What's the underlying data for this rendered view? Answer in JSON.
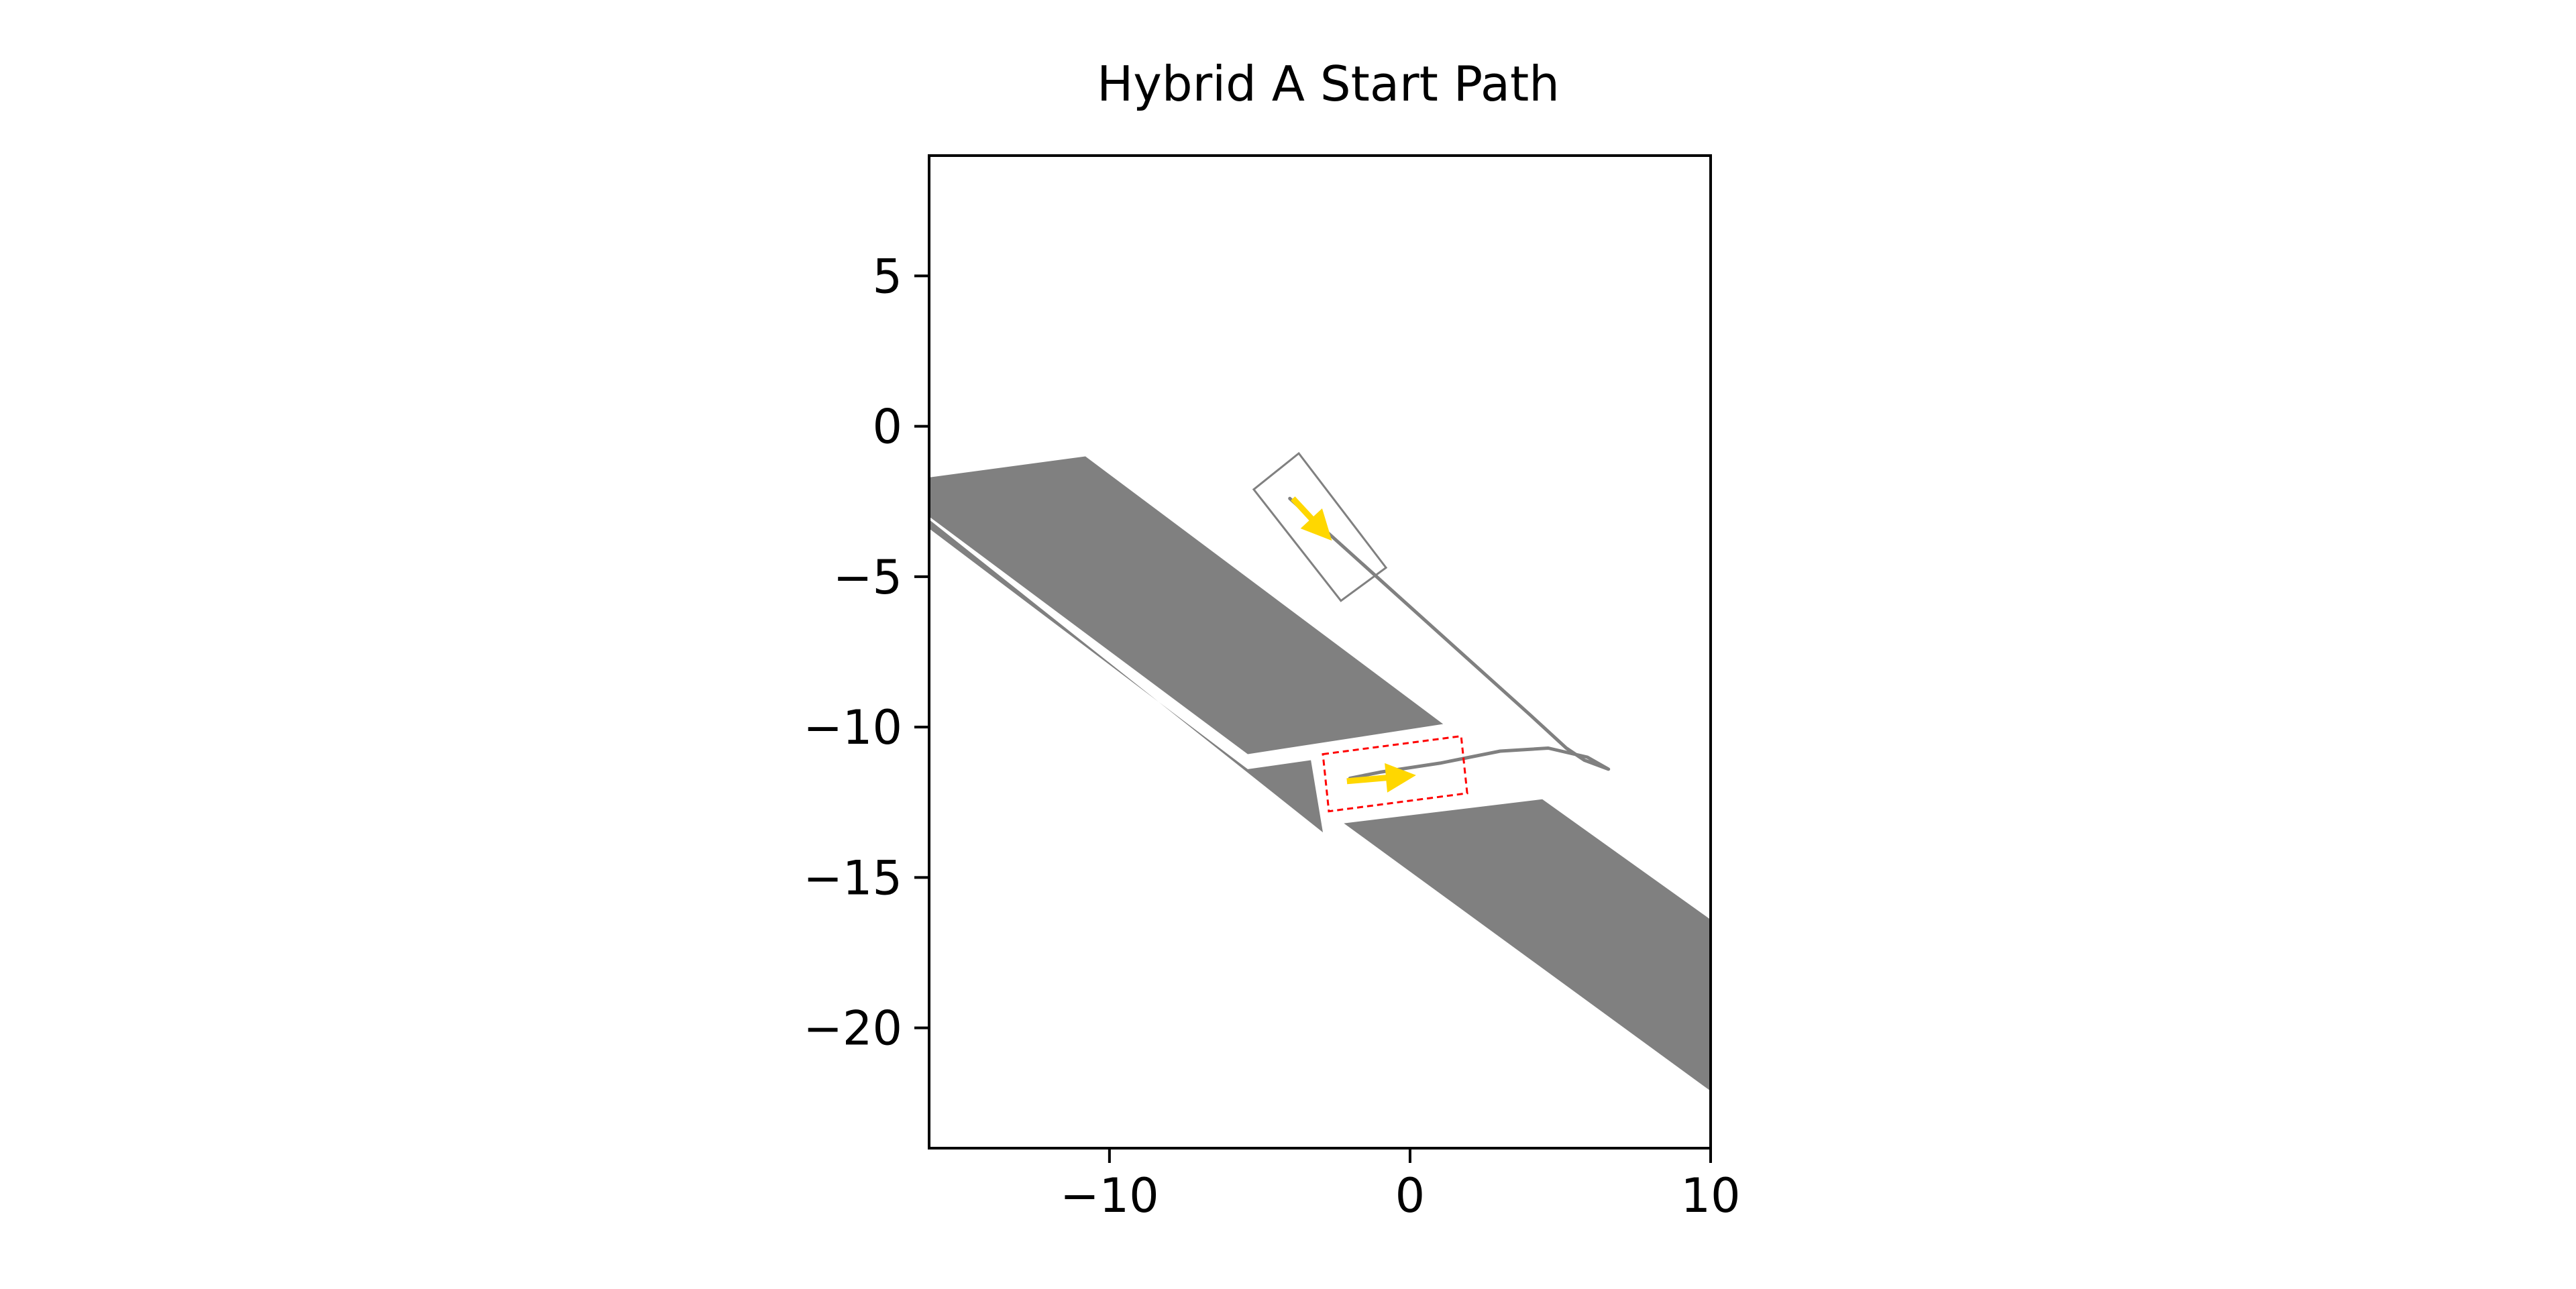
{
  "chart_data": {
    "type": "line",
    "title": "Hybrid A Start Path",
    "xlabel": "",
    "ylabel": "",
    "xlim": [
      -16,
      10
    ],
    "ylim": [
      -24,
      9
    ],
    "grid": false,
    "xticks": [
      {
        "value": -10,
        "label": "−10"
      },
      {
        "value": 0,
        "label": "0"
      },
      {
        "value": 10,
        "label": "10"
      }
    ],
    "yticks": [
      {
        "value": 5,
        "label": "5"
      },
      {
        "value": 0,
        "label": "0"
      },
      {
        "value": -5,
        "label": "−5"
      },
      {
        "value": -10,
        "label": "−10"
      },
      {
        "value": -15,
        "label": "−15"
      },
      {
        "value": -20,
        "label": "−20"
      }
    ],
    "obstacles": [
      {
        "name": "upper-lane",
        "fill": "#808080",
        "points": [
          [
            -16,
            -1.7
          ],
          [
            -10.8,
            -1
          ],
          [
            1.1,
            -9.9
          ],
          [
            -5.4,
            -10.9
          ],
          [
            -16,
            -3
          ]
        ]
      },
      {
        "name": "lower-lane",
        "fill": "#808080",
        "points": [
          [
            -3.3,
            -11.1
          ],
          [
            -5.4,
            -11.4
          ],
          [
            -16,
            -3.4
          ],
          [
            -16,
            -3.1
          ],
          [
            -2.9,
            -13.5
          ]
        ]
      },
      {
        "name": "lower-right-lane",
        "fill": "#808080",
        "points": [
          [
            -2.2,
            -13.2
          ],
          [
            4.4,
            -12.4
          ],
          [
            10,
            -16.4
          ],
          [
            10,
            -22.1
          ]
        ]
      }
    ],
    "series": [
      {
        "color": "#808080",
        "points": [
          [
            -4,
            -2.4
          ],
          [
            -1,
            -5.1
          ],
          [
            2,
            -7.8
          ],
          [
            4,
            -9.6
          ],
          [
            5.2,
            -10.7
          ],
          [
            5.8,
            -11.1
          ],
          [
            6.6,
            -11.4
          ],
          [
            5.9,
            -11.0
          ],
          [
            4.6,
            -10.7
          ],
          [
            3,
            -10.8
          ],
          [
            1,
            -11.2
          ],
          [
            -1,
            -11.5
          ],
          [
            -2,
            -11.7
          ]
        ]
      }
    ],
    "vehicle_boxes": [
      {
        "color": "#808080",
        "style": "solid",
        "corners": [
          [
            -5.2,
            -2.1
          ],
          [
            -3.7,
            -0.9
          ],
          [
            -0.8,
            -4.7
          ],
          [
            -2.3,
            -5.8
          ]
        ]
      },
      {
        "color": "#ff0000",
        "style": "dashed",
        "corners": [
          [
            -2.9,
            -10.9
          ],
          [
            1.7,
            -10.3
          ],
          [
            1.9,
            -12.2
          ],
          [
            -2.7,
            -12.8
          ]
        ]
      }
    ],
    "arrows": [
      {
        "color": "#ffd700",
        "from": [
          -3.9,
          -2.4
        ],
        "to": [
          -2.6,
          -3.8
        ]
      },
      {
        "color": "#ffd700",
        "from": [
          -2.1,
          -11.8
        ],
        "to": [
          0.2,
          -11.6
        ]
      }
    ]
  }
}
